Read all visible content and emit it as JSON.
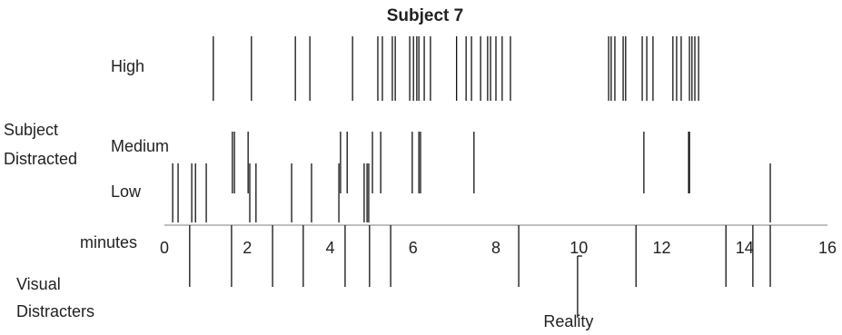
{
  "chart_data": {
    "type": "eventplot",
    "title": "Subject 7",
    "y_label": [
      "Subject",
      "Distracted"
    ],
    "x_label": "minutes",
    "lower_label": [
      "Visual",
      "Distracters"
    ],
    "xlim": [
      0,
      16
    ],
    "xticks": [
      0,
      2,
      4,
      6,
      8,
      10,
      12,
      14,
      16
    ],
    "series": [
      {
        "name": "High",
        "color": "#111111",
        "values": [
          1.18,
          2.1,
          3.16,
          3.51,
          4.54,
          5.15,
          5.26,
          5.5,
          5.57,
          5.92,
          6.01,
          6.09,
          6.14,
          6.27,
          6.42,
          7.05,
          7.28,
          7.41,
          7.63,
          7.8,
          7.87,
          8.0,
          8.15,
          8.35,
          10.72,
          10.78,
          10.87,
          11.07,
          11.13,
          11.53,
          11.64,
          11.79,
          12.27,
          12.36,
          12.47,
          12.67,
          12.73,
          12.8,
          12.89
        ]
      },
      {
        "name": "Medium",
        "color": "#111111",
        "values": [
          1.64,
          1.69,
          2.02,
          4.25,
          4.41,
          5.02,
          5.22,
          5.98,
          6.14,
          6.18,
          7.47,
          11.57,
          12.65,
          12.67
        ]
      },
      {
        "name": "Low",
        "color": "#111111",
        "values": [
          0.2,
          0.33,
          0.66,
          0.75,
          1.01,
          2.06,
          2.21,
          3.07,
          3.55,
          4.21,
          4.82,
          4.89,
          4.93,
          14.62
        ]
      },
      {
        "color": "#111111",
        "values": [
          0.61,
          1.62,
          2.61,
          3.35,
          4.36,
          4.95,
          5.46,
          8.55,
          11.38,
          13.55,
          14.2,
          14.62
        ]
      }
    ],
    "annotation": {
      "text": "Reality",
      "x": 9.97
    }
  }
}
